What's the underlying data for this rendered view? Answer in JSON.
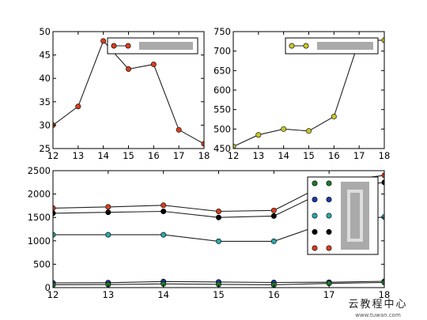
{
  "chart_data": [
    {
      "type": "line",
      "x": [
        12,
        13,
        14,
        15,
        16,
        17,
        18
      ],
      "xlim": [
        12,
        18
      ],
      "ylim": [
        25,
        50
      ],
      "xticks": [
        "12",
        "13",
        "14",
        "15",
        "16",
        "17",
        "18"
      ],
      "yticks": [
        "25",
        "30",
        "35",
        "40",
        "45",
        "50"
      ],
      "series": [
        {
          "values": [
            30,
            34,
            48,
            42,
            43,
            29,
            26
          ],
          "color": "#d43f1e"
        }
      ],
      "legend": {
        "position": "top-right",
        "text_redacted": true
      },
      "grid": false
    },
    {
      "type": "line",
      "x": [
        12,
        13,
        14,
        15,
        16,
        17,
        18
      ],
      "xlim": [
        12,
        18
      ],
      "ylim": [
        450,
        750
      ],
      "xticks": [
        "12",
        "13",
        "14",
        "15",
        "16",
        "17",
        "18"
      ],
      "yticks": [
        "450",
        "500",
        "550",
        "600",
        "650",
        "700",
        "750"
      ],
      "series": [
        {
          "values": [
            455,
            485,
            500,
            495,
            532,
            728,
            728
          ],
          "color": "#c7c62a"
        }
      ],
      "legend": {
        "position": "top-right",
        "text_redacted": true
      },
      "grid": false
    },
    {
      "type": "line",
      "x": [
        12,
        13,
        14,
        15,
        16,
        17,
        18
      ],
      "xlim": [
        12,
        18
      ],
      "ylim": [
        0,
        2500
      ],
      "xticks": [
        "12",
        "13",
        "14",
        "15",
        "16",
        "17",
        "18"
      ],
      "yticks": [
        "0",
        "500",
        "1000",
        "1500",
        "2000",
        "2500"
      ],
      "series": [
        {
          "values": [
            1700,
            1725,
            1760,
            1630,
            1650,
            2250,
            2400
          ],
          "color": "#d43f1e"
        },
        {
          "values": [
            1590,
            1610,
            1630,
            1500,
            1530,
            2100,
            2250
          ],
          "color": "#000000"
        },
        {
          "values": [
            1130,
            1130,
            1130,
            990,
            990,
            1400,
            1510
          ],
          "color": "#2ba8a8"
        },
        {
          "values": [
            100,
            105,
            130,
            120,
            110,
            115,
            135
          ],
          "color": "#1b3aa6"
        },
        {
          "values": [
            60,
            65,
            80,
            70,
            60,
            90,
            110
          ],
          "color": "#1e7a2a"
        }
      ],
      "legend": {
        "position": "top-right",
        "text_redacted": true
      },
      "grid": false
    }
  ],
  "watermark": {
    "title": "云教程中心",
    "subtitle": "www.tuwan.com"
  }
}
